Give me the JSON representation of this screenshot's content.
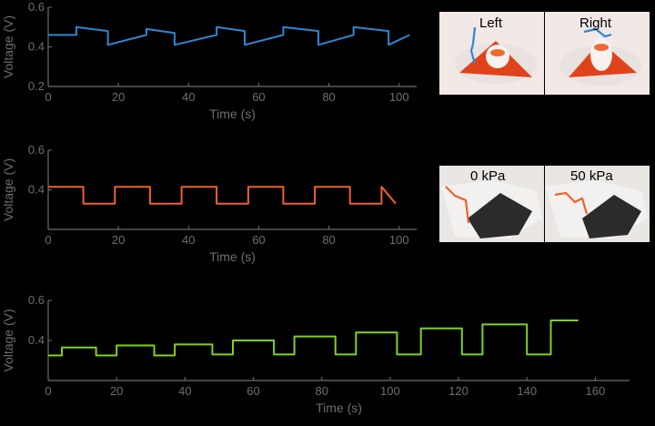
{
  "chart_data": [
    {
      "type": "line",
      "xlabel": "Time (s)",
      "ylabel": "Voltage (V)",
      "xlim": [
        0,
        105
      ],
      "ylim": [
        0.2,
        0.6
      ],
      "xticks": [
        0,
        20,
        40,
        60,
        80,
        100
      ],
      "yticks": [
        0.2,
        0.4,
        0.6
      ],
      "color": "#2f86d4",
      "series": [
        {
          "x": [
            0,
            8,
            8,
            17,
            17,
            28,
            28,
            36,
            36,
            48,
            48,
            56,
            56,
            67,
            67,
            77,
            77,
            87,
            87,
            97,
            97,
            103
          ],
          "y": [
            0.46,
            0.46,
            0.5,
            0.48,
            0.41,
            0.46,
            0.49,
            0.47,
            0.41,
            0.46,
            0.5,
            0.48,
            0.41,
            0.46,
            0.5,
            0.48,
            0.41,
            0.46,
            0.5,
            0.48,
            0.41,
            0.46
          ]
        }
      ],
      "photos": {
        "left_label": "Left",
        "right_label": "Right"
      }
    },
    {
      "type": "line",
      "xlabel": "Time (s)",
      "ylabel": "Voltage (V)",
      "xlim": [
        0,
        105
      ],
      "ylim": [
        0.2,
        0.6
      ],
      "xticks": [
        0,
        20,
        40,
        60,
        80,
        100
      ],
      "yticks": [
        0.4,
        0.6
      ],
      "color": "#f2602a",
      "series": [
        {
          "x": [
            0,
            10,
            10,
            19,
            19,
            29,
            29,
            38,
            38,
            48,
            48,
            57,
            57,
            67,
            67,
            76,
            76,
            86,
            86,
            95,
            95,
            99
          ],
          "y": [
            0.415,
            0.415,
            0.33,
            0.33,
            0.415,
            0.415,
            0.33,
            0.33,
            0.415,
            0.415,
            0.33,
            0.33,
            0.415,
            0.415,
            0.33,
            0.33,
            0.415,
            0.415,
            0.33,
            0.33,
            0.415,
            0.33
          ]
        }
      ],
      "photos": {
        "left_label": "0 kPa",
        "right_label": "50 kPa"
      }
    },
    {
      "type": "line",
      "xlabel": "Time (s)",
      "ylabel": "Voltage (V)",
      "xlim": [
        0,
        170
      ],
      "ylim": [
        0.2,
        0.6
      ],
      "xticks": [
        0,
        20,
        40,
        60,
        80,
        100,
        120,
        140,
        160
      ],
      "yticks": [
        0.4,
        0.6
      ],
      "color": "#7ed321",
      "series": [
        {
          "x": [
            0,
            4,
            4,
            14,
            14,
            20,
            20,
            31,
            31,
            37,
            37,
            48,
            48,
            54,
            54,
            66,
            66,
            72,
            72,
            84,
            84,
            90,
            90,
            102,
            102,
            109,
            109,
            121,
            121,
            127,
            127,
            140,
            140,
            147,
            147,
            155
          ],
          "y": [
            0.325,
            0.325,
            0.365,
            0.365,
            0.325,
            0.325,
            0.375,
            0.375,
            0.325,
            0.325,
            0.38,
            0.38,
            0.33,
            0.33,
            0.4,
            0.4,
            0.33,
            0.33,
            0.42,
            0.42,
            0.33,
            0.33,
            0.44,
            0.44,
            0.33,
            0.33,
            0.46,
            0.46,
            0.33,
            0.33,
            0.48,
            0.48,
            0.33,
            0.33,
            0.5,
            0.5
          ]
        }
      ]
    }
  ]
}
